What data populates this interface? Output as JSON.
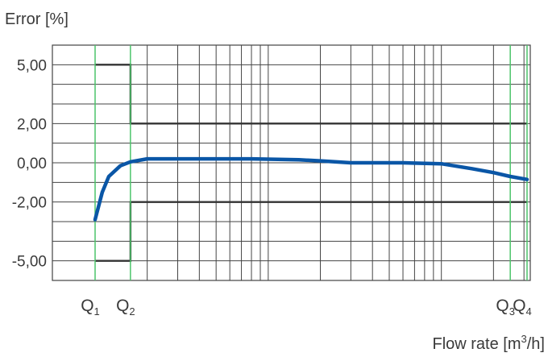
{
  "chart_data": {
    "type": "line",
    "ylabel": "Error [%]",
    "xlabel_main": "Flow rate [m",
    "xlabel_sup": "3",
    "xlabel_tail": "/h]",
    "y_ticks": [
      {
        "value": 5,
        "label": "5,00"
      },
      {
        "value": 2,
        "label": "2,00"
      },
      {
        "value": 0,
        "label": "0,00"
      },
      {
        "value": -2,
        "label": "-2,00"
      },
      {
        "value": -5,
        "label": "-5,00"
      }
    ],
    "x_markers": [
      {
        "id": "q1",
        "main": "Q",
        "sub": "1",
        "x": 1
      },
      {
        "id": "q2",
        "main": "Q",
        "sub": "2",
        "x": 1.6
      },
      {
        "id": "q3",
        "main": "Q",
        "sub": "3",
        "x": 250
      },
      {
        "id": "q4",
        "main": "Q",
        "sub": "4",
        "x": 312.5
      }
    ],
    "x_scale": "log",
    "xlim": [
      0.95,
      330
    ],
    "ylim": [
      -6,
      6
    ],
    "grid": true,
    "accent_color": "#0a56a6",
    "limit_color": "#333333",
    "marker_color": "#4cc46a",
    "series": [
      {
        "points": [
          [
            1.0,
            -2.9
          ],
          [
            1.1,
            -1.5
          ],
          [
            1.2,
            -0.7
          ],
          [
            1.4,
            -0.15
          ],
          [
            1.6,
            0.05
          ],
          [
            2.0,
            0.2
          ],
          [
            3.0,
            0.2
          ],
          [
            5.0,
            0.2
          ],
          [
            8.0,
            0.2
          ],
          [
            15.0,
            0.15
          ],
          [
            20.0,
            0.1
          ],
          [
            30.0,
            0.0
          ],
          [
            60.0,
            0.0
          ],
          [
            100.0,
            -0.05
          ],
          [
            150.0,
            -0.3
          ],
          [
            200.0,
            -0.5
          ],
          [
            250.0,
            -0.7
          ],
          [
            312.5,
            -0.85
          ]
        ]
      }
    ],
    "limits": [
      {
        "id": "upper-limit",
        "points": [
          [
            1,
            5
          ],
          [
            1.6,
            5
          ],
          [
            1.6,
            2
          ],
          [
            312.5,
            2
          ]
        ]
      },
      {
        "id": "lower-limit",
        "points": [
          [
            1,
            -5
          ],
          [
            1.6,
            -5
          ],
          [
            1.6,
            -2
          ],
          [
            312.5,
            -2
          ]
        ]
      }
    ]
  }
}
